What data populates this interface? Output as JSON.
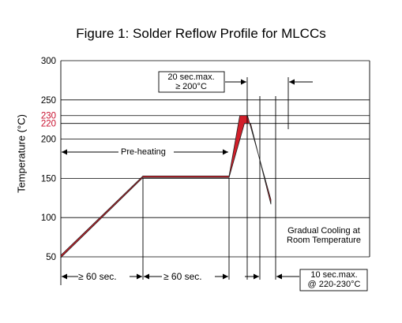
{
  "chart_data": {
    "type": "line",
    "title": "Figure 1: Solder Reflow Profile for MLCCs",
    "ylabel": "Temperature (°C)",
    "xlabel": "",
    "ylim": [
      50,
      300
    ],
    "y_ticks": [
      {
        "value": 50,
        "label": "50",
        "color": "#000000"
      },
      {
        "value": 100,
        "label": "100",
        "color": "#000000"
      },
      {
        "value": 150,
        "label": "150",
        "color": "#000000"
      },
      {
        "value": 200,
        "label": "200",
        "color": "#000000"
      },
      {
        "value": 220,
        "label": "220",
        "color": "#c8102e"
      },
      {
        "value": 230,
        "label": "230",
        "color": "#c8102e"
      },
      {
        "value": 250,
        "label": "250",
        "color": "#000000"
      },
      {
        "value": 300,
        "label": "300",
        "color": "#000000"
      }
    ],
    "profile_band": {
      "upper": [
        [
          0,
          52
        ],
        [
          1,
          153
        ],
        [
          2,
          153
        ],
        [
          2.35,
          230
        ],
        [
          2.6,
          230
        ],
        [
          3.7,
          123
        ]
      ],
      "lower": [
        [
          0,
          49
        ],
        [
          1,
          151
        ],
        [
          2,
          151
        ],
        [
          2.5,
          220
        ],
        [
          2.7,
          220
        ],
        [
          3.7,
          117
        ]
      ]
    },
    "fill_color": "#d11f2a",
    "annotations": {
      "preheating": "Pre-heating",
      "cooling_line1": "Gradual Cooling at",
      "cooling_line2": "Room Temperature",
      "top_box_line1": "20 sec.max.",
      "top_box_line2": "≥ 200°C",
      "bottom_box_line1": "10 sec.max.",
      "bottom_box_line2": "@ 220-230°C",
      "ramp_interval": "≥ 60 sec.",
      "preheat_interval": "≥ 60 sec."
    }
  }
}
